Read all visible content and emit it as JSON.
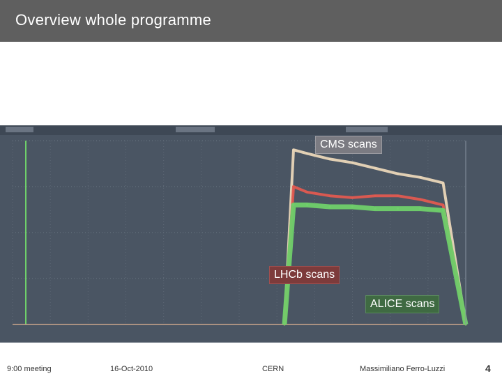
{
  "slide": {
    "title": "Overview whole programme"
  },
  "callouts": {
    "cms": "CMS scans",
    "lhcb": "LHCb scans",
    "alice": "ALICE scans"
  },
  "footer": {
    "meeting": "9:00 meeting",
    "date": "16-Oct-2010",
    "place": "CERN",
    "author": "Massimiliano Ferro-Luzzi",
    "page": "4"
  },
  "colors": {
    "title_bar": "#5f5f5f",
    "plot_background": "#4a5563",
    "cms_series": "#e9d6b8",
    "lhcb_series": "#e05a50",
    "alice_series": "#6fd06a",
    "lhcb_callout": "#7d3b3b",
    "alice_callout": "#3f6a42",
    "cms_callout": "#7b7b82"
  },
  "chart_data": {
    "type": "line",
    "series": [
      {
        "name": "CMS scans",
        "x": [
          0.6,
          0.62,
          0.65,
          0.7,
          0.75,
          0.8,
          0.85,
          0.9,
          0.95,
          1.0
        ],
        "values": [
          0.0,
          0.95,
          0.93,
          0.9,
          0.88,
          0.85,
          0.82,
          0.8,
          0.77,
          0.0
        ]
      },
      {
        "name": "LHCb scans",
        "x": [
          0.6,
          0.62,
          0.65,
          0.7,
          0.75,
          0.8,
          0.85,
          0.9,
          0.95,
          1.0
        ],
        "values": [
          0.0,
          0.75,
          0.72,
          0.7,
          0.69,
          0.7,
          0.7,
          0.68,
          0.65,
          0.0
        ]
      },
      {
        "name": "ALICE scans",
        "x": [
          0.6,
          0.62,
          0.65,
          0.7,
          0.75,
          0.8,
          0.85,
          0.9,
          0.95,
          1.0
        ],
        "values": [
          0.0,
          0.65,
          0.65,
          0.64,
          0.64,
          0.63,
          0.63,
          0.63,
          0.62,
          0.0
        ]
      }
    ],
    "ylim": [
      0,
      1
    ],
    "grid": true
  }
}
